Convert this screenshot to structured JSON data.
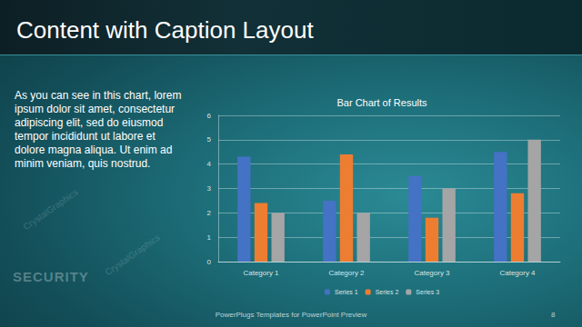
{
  "slide": {
    "title": "Content with Caption Layout",
    "caption": "As you can see in this chart, lorem ipsum dolor sit amet, consectetur adipiscing elit, sed do eiusmod tempor incididunt ut labore et dolore magna aliqua. Ut enim ad minim veniam, quis nostrud.",
    "background_text": "SECURITY",
    "watermark": "CrystalGraphics",
    "footer": "PowerPlugs Templates for PowerPoint Preview",
    "page": 8
  },
  "chart_data": {
    "type": "bar",
    "title": "Bar Chart of Results",
    "categories": [
      "Category 1",
      "Category 2",
      "Category 3",
      "Category 4"
    ],
    "series": [
      {
        "name": "Series 1",
        "color": "#4472c4",
        "values": [
          4.3,
          2.5,
          3.5,
          4.5
        ]
      },
      {
        "name": "Series 2",
        "color": "#ed7d31",
        "values": [
          2.4,
          4.4,
          1.8,
          2.8
        ]
      },
      {
        "name": "Series 3",
        "color": "#a5a5a5",
        "values": [
          2,
          2,
          3,
          5
        ]
      }
    ],
    "ylim": [
      0,
      6
    ],
    "yticks": [
      0,
      1,
      2,
      3,
      4,
      5,
      6
    ],
    "grid": true,
    "legend": "bottom"
  }
}
